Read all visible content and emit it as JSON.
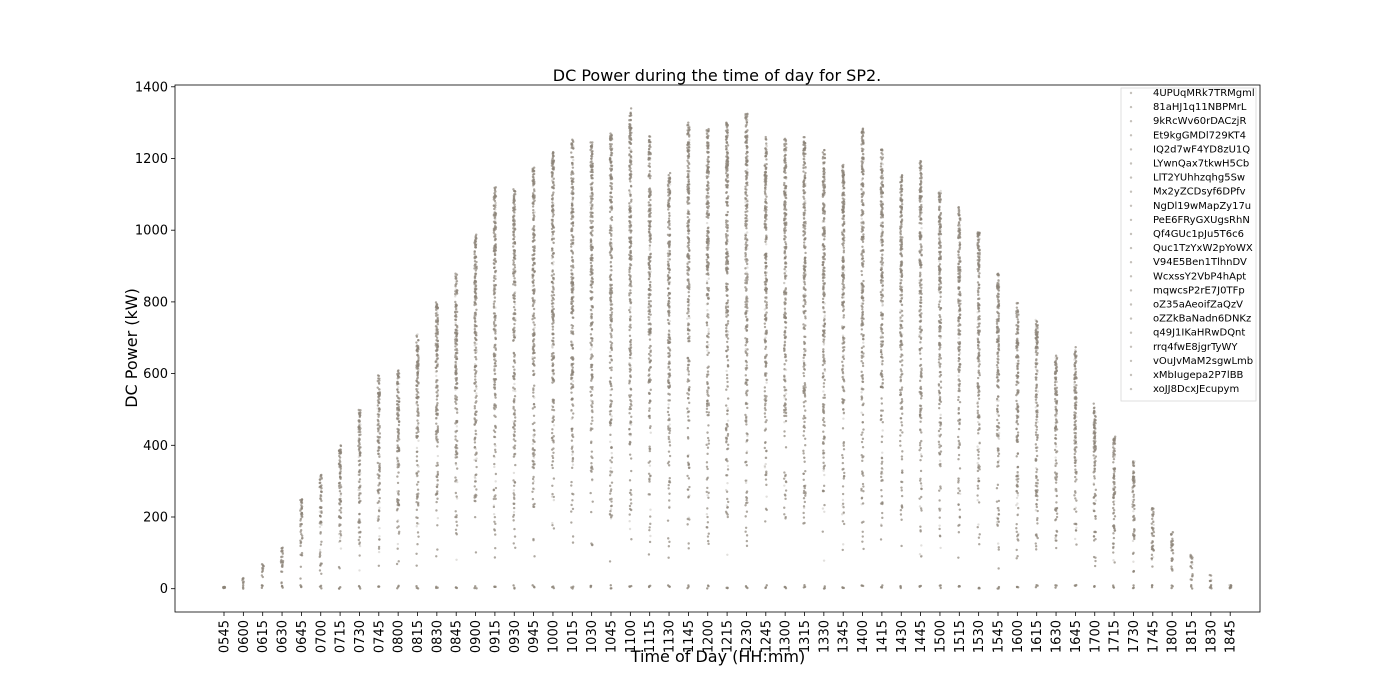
{
  "chart_data": {
    "type": "scatter",
    "title": "DC Power during the time of day for SP2.",
    "xlabel": "Time of Day (HH:mm)",
    "ylabel": "DC Power (kW)",
    "ylim": [
      -65,
      1405
    ],
    "yticks": [
      0,
      200,
      400,
      600,
      800,
      1000,
      1200,
      1400
    ],
    "grid": false,
    "legend_position": "top-right",
    "marker_color": "#8c8377",
    "categories": [
      "0545",
      "0600",
      "0615",
      "0630",
      "0645",
      "0700",
      "0715",
      "0730",
      "0745",
      "0800",
      "0815",
      "0830",
      "0845",
      "0900",
      "0915",
      "0930",
      "0945",
      "1000",
      "1015",
      "1030",
      "1045",
      "1100",
      "1115",
      "1130",
      "1145",
      "1200",
      "1215",
      "1230",
      "1245",
      "1300",
      "1315",
      "1330",
      "1345",
      "1400",
      "1415",
      "1430",
      "1445",
      "1500",
      "1515",
      "1530",
      "1545",
      "1600",
      "1615",
      "1630",
      "1645",
      "1700",
      "1715",
      "1730",
      "1745",
      "1800",
      "1815",
      "1830",
      "1845"
    ],
    "max_values": [
      5,
      30,
      70,
      125,
      250,
      320,
      400,
      505,
      595,
      610,
      710,
      800,
      880,
      990,
      1120,
      1115,
      1175,
      1225,
      1255,
      1245,
      1270,
      1340,
      1265,
      1160,
      1305,
      1285,
      1300,
      1325,
      1260,
      1255,
      1265,
      1230,
      1185,
      1285,
      1230,
      1160,
      1195,
      1115,
      1065,
      995,
      880,
      800,
      750,
      650,
      680,
      520,
      425,
      355,
      225,
      160,
      95,
      40,
      10
    ],
    "series": [
      {
        "name": "4UPUqMRk7TRMgml"
      },
      {
        "name": "81aHJ1q11NBPMrL"
      },
      {
        "name": "9kRcWv60rDACzjR"
      },
      {
        "name": "Et9kgGMDl729KT4"
      },
      {
        "name": "IQ2d7wF4YD8zU1Q"
      },
      {
        "name": "LYwnQax7tkwH5Cb"
      },
      {
        "name": "LlT2YUhhzqhg5Sw"
      },
      {
        "name": "Mx2yZCDsyf6DPfv"
      },
      {
        "name": "NgDl19wMapZy17u"
      },
      {
        "name": "PeE6FRyGXUgsRhN"
      },
      {
        "name": "Qf4GUc1pJu5T6c6"
      },
      {
        "name": "Quc1TzYxW2pYoWX"
      },
      {
        "name": "V94E5Ben1TlhnDV"
      },
      {
        "name": "WcxssY2VbP4hApt"
      },
      {
        "name": "mqwcsP2rE7J0TFp"
      },
      {
        "name": "oZ35aAeoifZaQzV"
      },
      {
        "name": "oZZkBaNadn6DNKz"
      },
      {
        "name": "q49J1IKaHRwDQnt"
      },
      {
        "name": "rrq4fwE8jgrTyWY"
      },
      {
        "name": "vOuJvMaM2sgwLmb"
      },
      {
        "name": "xMbIugepa2P7lBB"
      },
      {
        "name": "xoJJ8DcxJEcupym"
      }
    ]
  }
}
